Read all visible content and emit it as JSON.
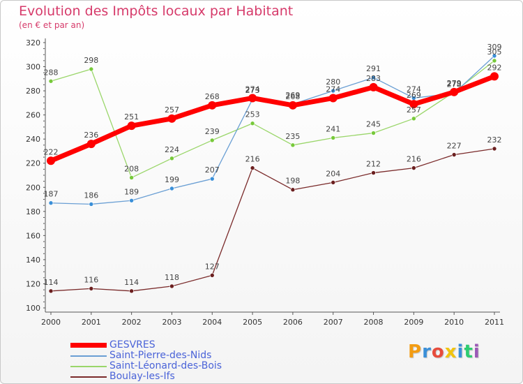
{
  "title": "Evolution des Impôts locaux par Habitant",
  "subtitle": "(en € et par an)",
  "logo": {
    "text": "Proxiti",
    "letters": [
      {
        "ch": "P",
        "color": "#f39c12"
      },
      {
        "ch": "r",
        "color": "#3a8fd8"
      },
      {
        "ch": "o",
        "color": "#e74c3c"
      },
      {
        "ch": "x",
        "color": "#f1c40f"
      },
      {
        "ch": "i",
        "color": "#3a8fd8"
      },
      {
        "ch": "t",
        "color": "#2ecc71"
      },
      {
        "ch": "i",
        "color": "#9b59b6"
      }
    ]
  },
  "chart_data": {
    "type": "line",
    "title": "Evolution des Impôts locaux par Habitant",
    "subtitle": "(en € et par an)",
    "xlabel": "",
    "ylabel": "",
    "ylim": [
      100,
      320
    ],
    "yticks": [
      100,
      120,
      140,
      160,
      180,
      200,
      220,
      240,
      260,
      280,
      300,
      320
    ],
    "x": [
      "2000",
      "2001",
      "2002",
      "2003",
      "2004",
      "2005",
      "2006",
      "2007",
      "2008",
      "2009",
      "2010",
      "2011"
    ],
    "grid": false,
    "legend_position": "bottom-left",
    "series": [
      {
        "name": "GESVRES",
        "color": "#ff0000",
        "marker": "#ff0000",
        "width": 7,
        "values": [
          222,
          236,
          251,
          257,
          268,
          274,
          268,
          274,
          283,
          269,
          279,
          292
        ],
        "labels": [
          "222",
          "236",
          "251",
          "257",
          "268",
          "274",
          "268",
          "274",
          "283",
          "269",
          "279",
          "292"
        ]
      },
      {
        "name": "Saint-Pierre-des-Nids",
        "color": "#6a9fd4",
        "marker": "#3a8fd8",
        "width": 1.3,
        "values": [
          187,
          186,
          189,
          199,
          207,
          273,
          269,
          280,
          291,
          274,
          278,
          309
        ],
        "labels": [
          "187",
          "186",
          "189",
          "199",
          "207",
          "273",
          "269",
          "280",
          "291",
          "274",
          "278",
          "309"
        ]
      },
      {
        "name": "Saint-Léonard-des-Bois",
        "color": "#9ad66a",
        "marker": "#77c93a",
        "width": 1.3,
        "values": [
          288,
          298,
          208,
          224,
          239,
          253,
          235,
          241,
          245,
          257,
          279,
          305
        ],
        "labels": [
          "288",
          "298",
          "208",
          "224",
          "239",
          "253",
          "235",
          "241",
          "245",
          "257",
          "279",
          "305"
        ]
      },
      {
        "name": "Boulay-les-Ifs",
        "color": "#7a2a2a",
        "marker": "#6b1f1f",
        "width": 1.3,
        "values": [
          114,
          116,
          114,
          118,
          127,
          216,
          198,
          204,
          212,
          216,
          227,
          232
        ],
        "labels": [
          "114",
          "116",
          "114",
          "118",
          "127",
          "216",
          "198",
          "204",
          "212",
          "216",
          "227",
          "232"
        ]
      }
    ]
  }
}
